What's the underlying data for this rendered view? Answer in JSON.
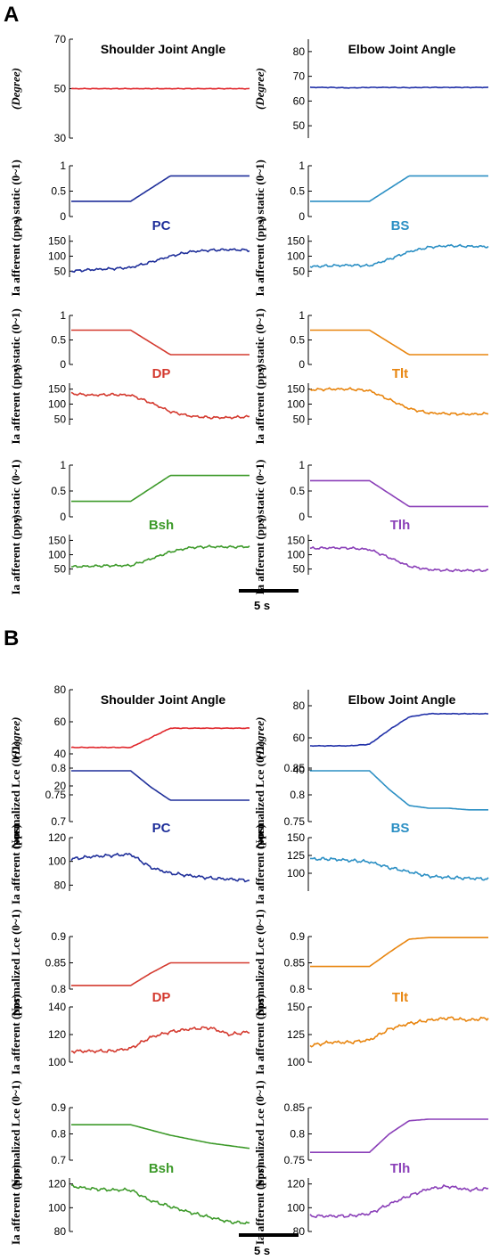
{
  "figure": {
    "panel_a_label": "A",
    "panel_b_label": "B",
    "scale_bar_label_a": "5 s",
    "scale_bar_label_b": "5 s"
  },
  "colors": {
    "PC": "#1f2f9a",
    "BS": "#2b8fc4",
    "DP": "#d43a2f",
    "Tlt": "#e8850f",
    "Bsh": "#3d9a2a",
    "Tlh": "#8a3fb8",
    "joint": "#e0252a",
    "elbow": "#2030a8"
  },
  "chart_data": [
    {
      "id": "A1L",
      "type": "line",
      "title": "Shoulder Joint Angle",
      "ylabel": "(Degree)",
      "ylim": [
        30,
        70
      ],
      "yticks": [
        "30",
        "50",
        "70"
      ],
      "color": "#e0252a",
      "series": [
        {
          "values": [
            50,
            50,
            50,
            50,
            50,
            50,
            50,
            50,
            50,
            50
          ]
        }
      ]
    },
    {
      "id": "A1R",
      "type": "line",
      "title": "Elbow Joint Angle",
      "ylabel": "(Degree)",
      "ylim": [
        45,
        85
      ],
      "yticks": [
        "50",
        "60",
        "70",
        "80"
      ],
      "color": "#2030a8",
      "series": [
        {
          "values": [
            65.5,
            65.5,
            65.3,
            65.5,
            65.5,
            65.4,
            65.5,
            65.5,
            65.5,
            65.5
          ]
        }
      ]
    },
    {
      "id": "A2L",
      "type": "line",
      "ylabel": "γ static (0~1)",
      "ylim": [
        0,
        1
      ],
      "yticks": [
        "0",
        "0.5",
        "1"
      ],
      "color": "#1f2f9a",
      "series": [
        {
          "values": [
            0.3,
            0.3,
            0.3,
            0.3,
            0.55,
            0.8,
            0.8,
            0.8,
            0.8,
            0.8
          ]
        }
      ]
    },
    {
      "id": "A2R",
      "type": "line",
      "ylabel": "γ static (0~1)",
      "ylim": [
        0,
        1
      ],
      "yticks": [
        "0",
        "0.5",
        "1"
      ],
      "color": "#2b8fc4",
      "series": [
        {
          "values": [
            0.3,
            0.3,
            0.3,
            0.3,
            0.55,
            0.8,
            0.8,
            0.8,
            0.8,
            0.8
          ]
        }
      ]
    },
    {
      "id": "A3L",
      "type": "line",
      "muscle": "PC",
      "ylabel": "Ia afferent (pps)",
      "ylim": [
        30,
        170
      ],
      "yticks": [
        "50",
        "100",
        "150"
      ],
      "color": "#1f2f9a",
      "series": [
        {
          "values": [
            50,
            55,
            58,
            62,
            80,
            100,
            115,
            120,
            122,
            120
          ]
        }
      ]
    },
    {
      "id": "A3R",
      "type": "line",
      "muscle": "BS",
      "ylabel": "Ia afferent (pps)",
      "ylim": [
        30,
        170
      ],
      "yticks": [
        "50",
        "100",
        "150"
      ],
      "color": "#2b8fc4",
      "series": [
        {
          "values": [
            65,
            68,
            70,
            68,
            90,
            115,
            130,
            135,
            133,
            132
          ]
        }
      ]
    },
    {
      "id": "A4L",
      "type": "line",
      "ylabel": "γ static (0~1)",
      "ylim": [
        0,
        1
      ],
      "yticks": [
        "0",
        "0.5",
        "1"
      ],
      "color": "#d43a2f",
      "series": [
        {
          "values": [
            0.7,
            0.7,
            0.7,
            0.7,
            0.45,
            0.2,
            0.2,
            0.2,
            0.2,
            0.2
          ]
        }
      ]
    },
    {
      "id": "A4R",
      "type": "line",
      "ylabel": "γ static (0~1)",
      "ylim": [
        0,
        1
      ],
      "yticks": [
        "0",
        "0.5",
        "1"
      ],
      "color": "#e8850f",
      "series": [
        {
          "values": [
            0.7,
            0.7,
            0.7,
            0.7,
            0.45,
            0.2,
            0.2,
            0.2,
            0.2,
            0.2
          ]
        }
      ]
    },
    {
      "id": "A5L",
      "type": "line",
      "muscle": "DP",
      "ylabel": "Ia afferent (pps)",
      "ylim": [
        30,
        170
      ],
      "yticks": [
        "50",
        "100",
        "150"
      ],
      "color": "#d43a2f",
      "series": [
        {
          "values": [
            135,
            130,
            132,
            130,
            105,
            75,
            60,
            55,
            55,
            58
          ]
        }
      ]
    },
    {
      "id": "A5R",
      "type": "line",
      "muscle": "Tlt",
      "ylabel": "Ia afferent (pps)",
      "ylim": [
        30,
        170
      ],
      "yticks": [
        "50",
        "100",
        "150"
      ],
      "color": "#e8850f",
      "series": [
        {
          "values": [
            148,
            150,
            150,
            145,
            115,
            85,
            70,
            68,
            66,
            68
          ]
        }
      ]
    },
    {
      "id": "A6L",
      "type": "line",
      "ylabel": "γ static (0~1)",
      "ylim": [
        0,
        1
      ],
      "yticks": [
        "0",
        "0.5",
        "1"
      ],
      "color": "#3d9a2a",
      "series": [
        {
          "values": [
            0.3,
            0.3,
            0.3,
            0.3,
            0.55,
            0.8,
            0.8,
            0.8,
            0.8,
            0.8
          ]
        }
      ]
    },
    {
      "id": "A6R",
      "type": "line",
      "ylabel": "γ static (0~1)",
      "ylim": [
        0,
        1
      ],
      "yticks": [
        "0",
        "0.5",
        "1"
      ],
      "color": "#8a3fb8",
      "series": [
        {
          "values": [
            0.7,
            0.7,
            0.7,
            0.7,
            0.45,
            0.2,
            0.2,
            0.2,
            0.2,
            0.2
          ]
        }
      ]
    },
    {
      "id": "A7L",
      "type": "line",
      "muscle": "Bsh",
      "ylabel": "Ia afferent (pps)",
      "ylim": [
        30,
        170
      ],
      "yticks": [
        "50",
        "100",
        "150"
      ],
      "color": "#3d9a2a",
      "series": [
        {
          "values": [
            58,
            60,
            62,
            62,
            85,
            110,
            125,
            128,
            127,
            128
          ]
        }
      ]
    },
    {
      "id": "A7R",
      "type": "line",
      "muscle": "Tlh",
      "ylabel": "Ia afferent (pps)",
      "ylim": [
        30,
        170
      ],
      "yticks": [
        "50",
        "100",
        "150"
      ],
      "color": "#8a3fb8",
      "series": [
        {
          "values": [
            122,
            124,
            123,
            118,
            90,
            60,
            48,
            45,
            45,
            45
          ]
        }
      ]
    },
    {
      "id": "B1L",
      "type": "line",
      "title": "Shoulder Joint Angle",
      "ylabel": "(Degree)",
      "ylim": [
        20,
        80
      ],
      "yticks": [
        "20",
        "40",
        "60",
        "80"
      ],
      "color": "#e0252a",
      "series": [
        {
          "values": [
            44,
            44,
            44,
            44,
            50,
            56,
            56,
            56,
            56,
            56
          ]
        }
      ]
    },
    {
      "id": "B1R",
      "type": "line",
      "title": "Elbow Joint Angle",
      "ylabel": "(Degree)",
      "ylim": [
        30,
        90
      ],
      "yticks": [
        "40",
        "60",
        "80"
      ],
      "color": "#2030a8",
      "series": [
        {
          "values": [
            55,
            55,
            55,
            56,
            65,
            73,
            75,
            75,
            75,
            75
          ]
        }
      ]
    },
    {
      "id": "B2L",
      "type": "line",
      "ylabel": "Normalized Lce (0~1)",
      "ylim": [
        0.7,
        0.8
      ],
      "yticks": [
        "0.7",
        "0.75",
        "0.8"
      ],
      "color": "#1f2f9a",
      "series": [
        {
          "values": [
            0.795,
            0.795,
            0.795,
            0.795,
            0.765,
            0.74,
            0.74,
            0.74,
            0.74,
            0.74
          ]
        }
      ]
    },
    {
      "id": "B2R",
      "type": "line",
      "ylabel": "Normalized Lce (0~1)",
      "ylim": [
        0.75,
        0.85
      ],
      "yticks": [
        "0.75",
        "0.8",
        "0.85"
      ],
      "color": "#2b8fc4",
      "series": [
        {
          "values": [
            0.845,
            0.845,
            0.845,
            0.845,
            0.81,
            0.78,
            0.775,
            0.775,
            0.772,
            0.772
          ]
        }
      ]
    },
    {
      "id": "B3L",
      "type": "line",
      "muscle": "PC",
      "ylabel": "Ia afferent (pps)",
      "ylim": [
        75,
        120
      ],
      "yticks": [
        "80",
        "100",
        "120"
      ],
      "color": "#1f2f9a",
      "series": [
        {
          "values": [
            102,
            104,
            105,
            106,
            95,
            90,
            88,
            86,
            85,
            84
          ]
        }
      ]
    },
    {
      "id": "B3R",
      "type": "line",
      "muscle": "BS",
      "ylabel": "Ia afferent (pps)",
      "ylim": [
        75,
        150
      ],
      "yticks": [
        "100",
        "125",
        "150"
      ],
      "color": "#2b8fc4",
      "series": [
        {
          "values": [
            120,
            120,
            118,
            116,
            108,
            102,
            96,
            94,
            93,
            92
          ]
        }
      ]
    },
    {
      "id": "B4L",
      "type": "line",
      "ylabel": "Normalized Lce (0~1)",
      "ylim": [
        0.8,
        0.9
      ],
      "yticks": [
        "0.8",
        "0.85",
        "0.9"
      ],
      "color": "#d43a2f",
      "series": [
        {
          "values": [
            0.807,
            0.807,
            0.807,
            0.807,
            0.83,
            0.85,
            0.85,
            0.85,
            0.85,
            0.85
          ]
        }
      ]
    },
    {
      "id": "B4R",
      "type": "line",
      "ylabel": "Normalized Lce (0~1)",
      "ylim": [
        0.8,
        0.9
      ],
      "yticks": [
        "0.8",
        "0.85",
        "0.9"
      ],
      "color": "#e8850f",
      "series": [
        {
          "values": [
            0.843,
            0.843,
            0.843,
            0.843,
            0.87,
            0.895,
            0.898,
            0.898,
            0.898,
            0.898
          ]
        }
      ]
    },
    {
      "id": "B5L",
      "type": "line",
      "muscle": "DP",
      "ylabel": "Ia afferent (pps)",
      "ylim": [
        100,
        140
      ],
      "yticks": [
        "100",
        "120",
        "140"
      ],
      "color": "#d43a2f",
      "series": [
        {
          "values": [
            108,
            108,
            108,
            110,
            118,
            122,
            124,
            125,
            120,
            122
          ]
        }
      ]
    },
    {
      "id": "B5R",
      "type": "line",
      "muscle": "Tlt",
      "ylabel": "Ia afferent (pps)",
      "ylim": [
        100,
        150
      ],
      "yticks": [
        "100",
        "125",
        "150"
      ],
      "color": "#e8850f",
      "series": [
        {
          "values": [
            115,
            118,
            118,
            120,
            130,
            135,
            138,
            140,
            138,
            140
          ]
        }
      ]
    },
    {
      "id": "B6L",
      "type": "line",
      "ylabel": "Normalized Lce (0~1)",
      "ylim": [
        0.7,
        0.9
      ],
      "yticks": [
        "0.7",
        "0.8",
        "0.9"
      ],
      "color": "#3d9a2a",
      "series": [
        {
          "values": [
            0.835,
            0.835,
            0.835,
            0.835,
            0.815,
            0.795,
            0.78,
            0.765,
            0.755,
            0.745
          ]
        }
      ]
    },
    {
      "id": "B6R",
      "type": "line",
      "ylabel": "Normalized Lce (0~1)",
      "ylim": [
        0.75,
        0.85
      ],
      "yticks": [
        "0.75",
        "0.8",
        "0.85"
      ],
      "color": "#8a3fb8",
      "series": [
        {
          "values": [
            0.765,
            0.765,
            0.765,
            0.765,
            0.8,
            0.825,
            0.828,
            0.828,
            0.828,
            0.828
          ]
        }
      ]
    },
    {
      "id": "B7L",
      "type": "line",
      "muscle": "Bsh",
      "ylabel": "Ia afferent (pps)",
      "ylim": [
        80,
        125
      ],
      "yticks": [
        "80",
        "100",
        "120"
      ],
      "color": "#3d9a2a",
      "series": [
        {
          "values": [
            118,
            116,
            115,
            115,
            106,
            101,
            96,
            92,
            88,
            87
          ]
        }
      ]
    },
    {
      "id": "B7R",
      "type": "line",
      "muscle": "Tlh",
      "ylabel": "Ia afferent (pps)",
      "ylim": [
        80,
        125
      ],
      "yticks": [
        "80",
        "100",
        "120"
      ],
      "color": "#8a3fb8",
      "series": [
        {
          "values": [
            93,
            93,
            93,
            95,
            103,
            110,
            116,
            118,
            115,
            116
          ]
        }
      ]
    }
  ]
}
